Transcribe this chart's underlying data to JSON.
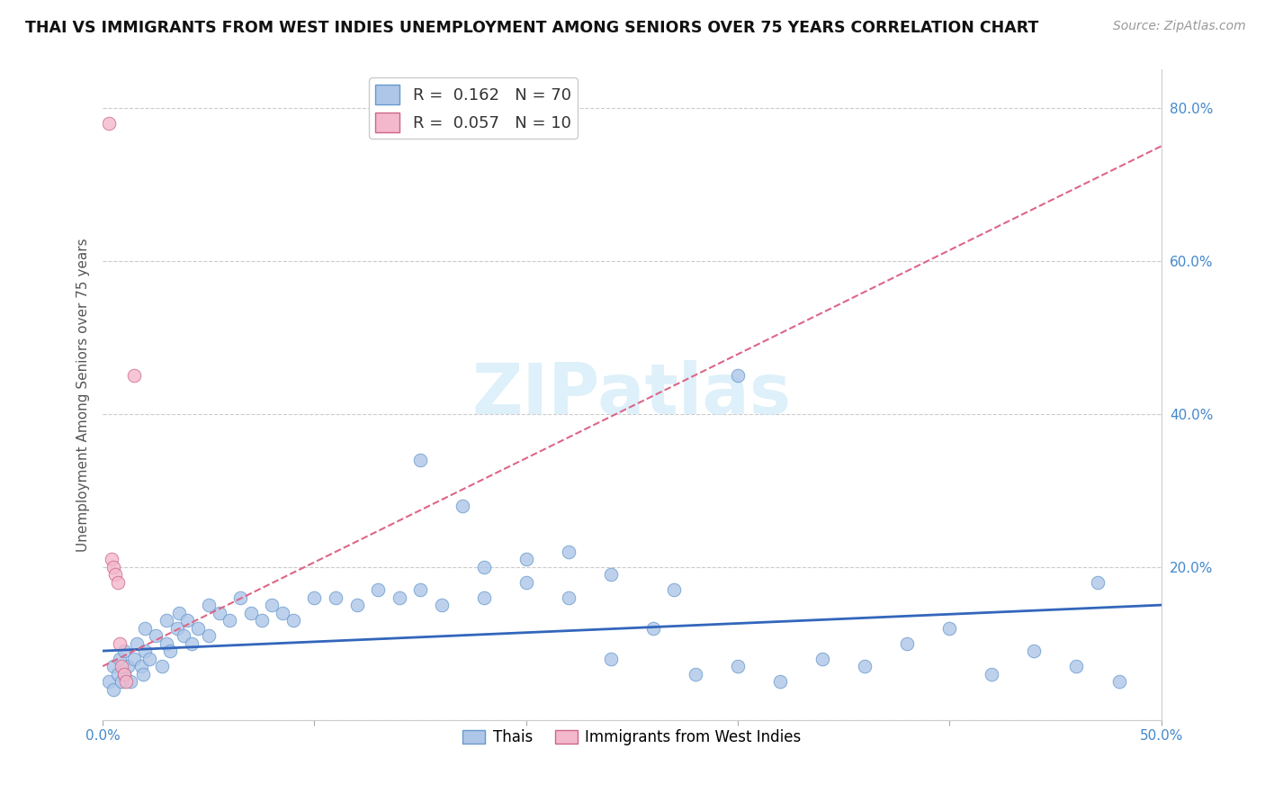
{
  "title": "THAI VS IMMIGRANTS FROM WEST INDIES UNEMPLOYMENT AMONG SENIORS OVER 75 YEARS CORRELATION CHART",
  "source": "Source: ZipAtlas.com",
  "ylabel": "Unemployment Among Seniors over 75 years",
  "xmin": 0.0,
  "xmax": 0.5,
  "ymin": 0.0,
  "ymax": 0.85,
  "xticks": [
    0.0,
    0.1,
    0.2,
    0.3,
    0.4,
    0.5
  ],
  "xtick_labels": [
    "0.0%",
    "",
    "",
    "",
    "",
    "50.0%"
  ],
  "yticks": [
    0.0,
    0.2,
    0.4,
    0.6,
    0.8
  ],
  "ytick_labels": [
    "",
    "20.0%",
    "40.0%",
    "60.0%",
    "80.0%"
  ],
  "thai_color": "#aec6e8",
  "thai_edge_color": "#6699cc",
  "westindies_color": "#f4b8cc",
  "westindies_edge_color": "#cc6688",
  "trend_thai_color": "#3366bb",
  "trend_westindies_color": "#dd6688",
  "watermark_color": "#d0eaf8",
  "background_color": "#ffffff",
  "grid_color": "#cccccc",
  "title_color": "#111111",
  "source_color": "#999999",
  "tick_color": "#4488cc",
  "ylabel_color": "#555555",
  "thai_x": [
    0.003,
    0.005,
    0.005,
    0.007,
    0.008,
    0.009,
    0.01,
    0.01,
    0.012,
    0.013,
    0.015,
    0.016,
    0.018,
    0.019,
    0.02,
    0.02,
    0.022,
    0.025,
    0.028,
    0.03,
    0.03,
    0.032,
    0.035,
    0.036,
    0.038,
    0.04,
    0.042,
    0.045,
    0.05,
    0.05,
    0.055,
    0.06,
    0.065,
    0.07,
    0.075,
    0.08,
    0.085,
    0.09,
    0.1,
    0.11,
    0.12,
    0.13,
    0.14,
    0.15,
    0.16,
    0.18,
    0.2,
    0.22,
    0.24,
    0.26,
    0.28,
    0.3,
    0.32,
    0.34,
    0.36,
    0.38,
    0.4,
    0.42,
    0.44,
    0.46,
    0.48,
    0.15,
    0.17,
    0.18,
    0.2,
    0.22,
    0.24,
    0.27,
    0.3,
    0.47
  ],
  "thai_y": [
    0.05,
    0.07,
    0.04,
    0.06,
    0.08,
    0.05,
    0.09,
    0.06,
    0.07,
    0.05,
    0.08,
    0.1,
    0.07,
    0.06,
    0.09,
    0.12,
    0.08,
    0.11,
    0.07,
    0.13,
    0.1,
    0.09,
    0.12,
    0.14,
    0.11,
    0.13,
    0.1,
    0.12,
    0.15,
    0.11,
    0.14,
    0.13,
    0.16,
    0.14,
    0.13,
    0.15,
    0.14,
    0.13,
    0.16,
    0.16,
    0.15,
    0.17,
    0.16,
    0.17,
    0.15,
    0.16,
    0.18,
    0.16,
    0.08,
    0.12,
    0.06,
    0.07,
    0.05,
    0.08,
    0.07,
    0.1,
    0.12,
    0.06,
    0.09,
    0.07,
    0.05,
    0.34,
    0.28,
    0.2,
    0.21,
    0.22,
    0.19,
    0.17,
    0.45,
    0.18
  ],
  "westindies_x": [
    0.003,
    0.004,
    0.005,
    0.006,
    0.007,
    0.008,
    0.009,
    0.01,
    0.011,
    0.015
  ],
  "westindies_y": [
    0.78,
    0.21,
    0.2,
    0.19,
    0.18,
    0.1,
    0.07,
    0.06,
    0.05,
    0.45
  ],
  "wi_trend_x0": 0.0,
  "wi_trend_y0": 0.07,
  "wi_trend_x1": 0.5,
  "wi_trend_y1": 0.75,
  "thai_trend_x0": 0.0,
  "thai_trend_y0": 0.09,
  "thai_trend_x1": 0.5,
  "thai_trend_y1": 0.15
}
